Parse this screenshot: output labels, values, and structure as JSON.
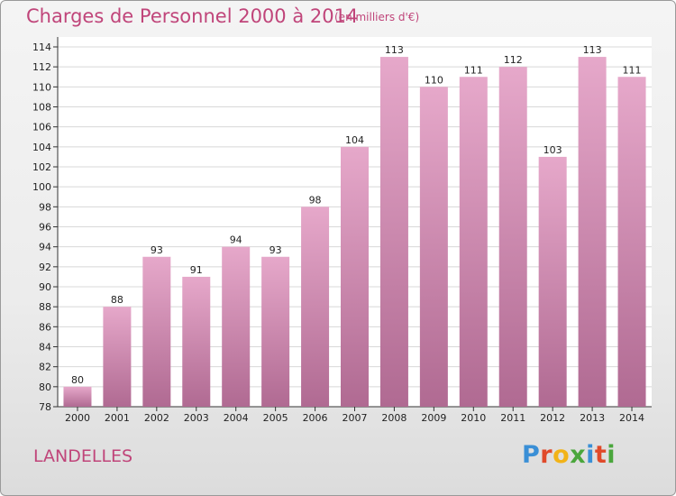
{
  "header": {
    "title": "Charges de Personnel 2000 à 2014",
    "subtitle": "(en milliers d'€)"
  },
  "footer": {
    "commune": "LANDELLES",
    "logo_text": "Proxiti",
    "logo_colors": [
      "#3a8fd6",
      "#e04a2a",
      "#f2b318",
      "#4aa63c",
      "#3a8fd6",
      "#e04a2a",
      "#4aa63c"
    ]
  },
  "colors": {
    "title": "#c0457a",
    "bar_top": "#e6a8ca",
    "bar_bottom": "#b06a92",
    "plot_bg": "#ffffff",
    "grid": "#d8d8d8"
  },
  "chart_data": {
    "type": "bar",
    "title": "Charges de Personnel 2000 à 2014",
    "subtitle": "(en milliers d'€)",
    "categories": [
      "2000",
      "2001",
      "2002",
      "2003",
      "2004",
      "2005",
      "2006",
      "2007",
      "2008",
      "2009",
      "2010",
      "2011",
      "2012",
      "2013",
      "2014"
    ],
    "values": [
      80,
      88,
      93,
      91,
      94,
      93,
      98,
      104,
      113,
      110,
      111,
      112,
      103,
      113,
      111
    ],
    "ylim": [
      78,
      114
    ],
    "yticks": [
      78,
      80,
      82,
      84,
      86,
      88,
      90,
      92,
      94,
      96,
      98,
      100,
      102,
      104,
      106,
      108,
      110,
      112,
      114
    ],
    "grid": true,
    "legend": "none"
  }
}
